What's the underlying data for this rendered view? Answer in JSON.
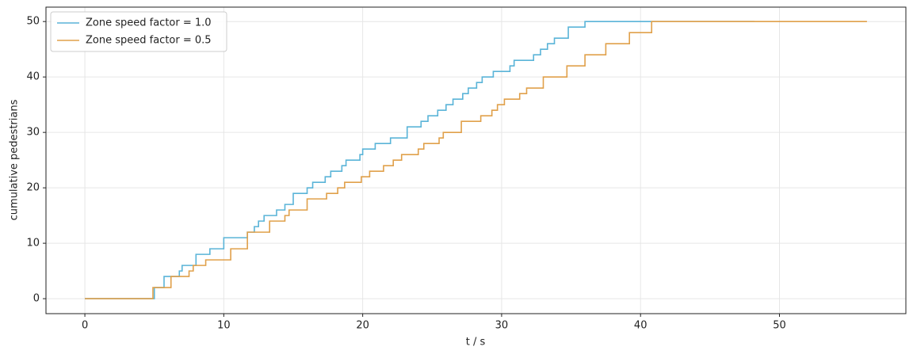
{
  "chart_data": {
    "type": "line",
    "drawstyle": "steps-post",
    "xlabel": "t / s",
    "ylabel": "cumulative pedestrians",
    "xlim": [
      -2.8,
      59.1
    ],
    "ylim": [
      -2.7,
      52.6
    ],
    "xticks": [
      0,
      10,
      20,
      30,
      40,
      50
    ],
    "yticks": [
      0,
      10,
      20,
      30,
      40,
      50
    ],
    "grid": true,
    "legend": "upper left",
    "series": [
      {
        "name": "Zone speed factor = 1.0",
        "color": "#5ab4d8",
        "x": [
          0,
          5.0,
          5.7,
          6.8,
          7.0,
          8.0,
          9.0,
          10.0,
          11.7,
          12.2,
          12.5,
          12.9,
          13.8,
          14.4,
          15.0,
          16.0,
          16.4,
          17.3,
          17.7,
          18.5,
          18.8,
          19.8,
          20.0,
          20.9,
          22.0,
          23.2,
          24.2,
          24.7,
          25.4,
          26.0,
          26.5,
          27.2,
          27.6,
          28.2,
          28.6,
          29.4,
          30.6,
          30.9,
          32.3,
          32.8,
          33.3,
          33.8,
          34.8,
          36.0,
          48.2
        ],
        "values": [
          0,
          2,
          4,
          5,
          6,
          8,
          9,
          11,
          12,
          13,
          14,
          15,
          16,
          17,
          19,
          20,
          21,
          22,
          23,
          24,
          25,
          26,
          27,
          28,
          29,
          31,
          32,
          33,
          34,
          35,
          36,
          37,
          38,
          39,
          40,
          41,
          42,
          43,
          44,
          45,
          46,
          47,
          49,
          50,
          50
        ]
      },
      {
        "name": "Zone speed factor = 0.5",
        "color": "#e0a04a",
        "x": [
          0,
          4.9,
          6.2,
          7.5,
          7.8,
          8.7,
          10.5,
          11.7,
          13.3,
          14.4,
          14.7,
          16.0,
          17.4,
          18.2,
          18.7,
          19.9,
          20.5,
          21.5,
          22.2,
          22.8,
          24.0,
          24.4,
          25.5,
          25.8,
          27.1,
          28.5,
          29.3,
          29.7,
          30.2,
          31.3,
          31.8,
          33.0,
          34.7,
          36.0,
          37.5,
          39.2,
          40.8,
          56.3
        ],
        "values": [
          0,
          2,
          4,
          5,
          6,
          7,
          9,
          12,
          14,
          15,
          16,
          18,
          19,
          20,
          21,
          22,
          23,
          24,
          25,
          26,
          27,
          28,
          29,
          30,
          32,
          33,
          34,
          35,
          36,
          37,
          38,
          40,
          42,
          44,
          46,
          48,
          50,
          50
        ]
      }
    ]
  }
}
